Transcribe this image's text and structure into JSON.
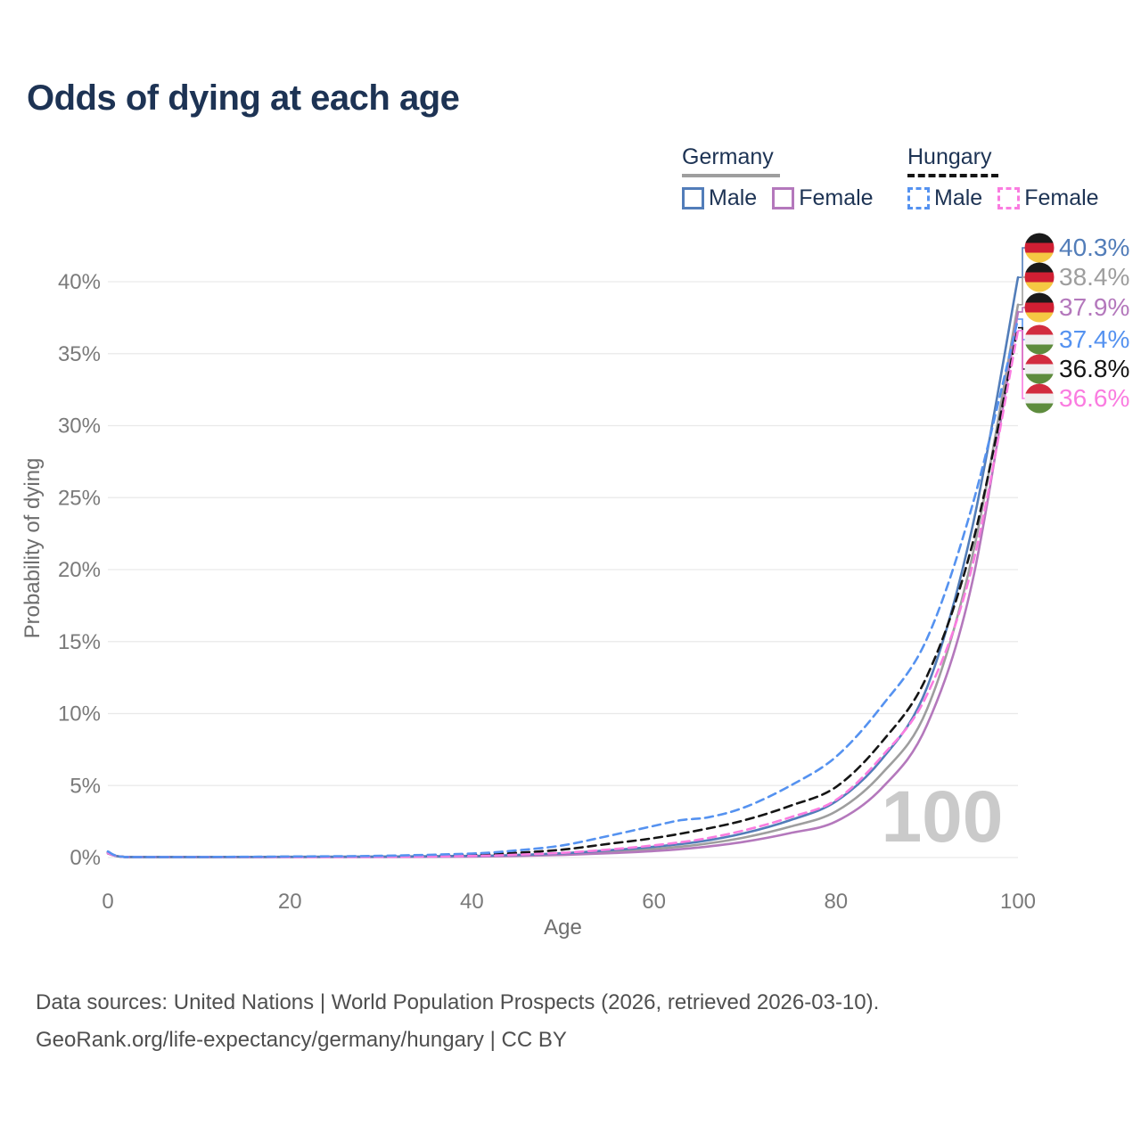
{
  "title": "Odds of dying at each age",
  "legend": {
    "groups": [
      {
        "label": "Germany",
        "line_style": "solid",
        "line_color": "#9e9e9e",
        "items": [
          {
            "label": "Male",
            "color": "#527db9",
            "style": "solid"
          },
          {
            "label": "Female",
            "color": "#b478bc",
            "style": "solid"
          }
        ]
      },
      {
        "label": "Hungary",
        "line_style": "dashed",
        "line_color": "#151515",
        "items": [
          {
            "label": "Male",
            "color": "#5592f0",
            "style": "dashed"
          },
          {
            "label": "Female",
            "color": "#fa7ce0",
            "style": "dashed"
          }
        ]
      }
    ]
  },
  "colors": {
    "navy": "#1d3354",
    "germany_male": "#527db9",
    "germany_female": "#b478bc",
    "germany_both": "#9e9e9e",
    "hungary_male": "#5592f0",
    "hungary_female": "#fa7ce0",
    "hungary_both": "#151515",
    "grid": "#e9e9e9",
    "tick_text": "#7a7a7a",
    "axis_title_text": "#6e6e6e",
    "watermark": "#cacaca",
    "footer_text": "#4f4f4f",
    "flag_germany": [
      "#1a1a1a",
      "#d01f33",
      "#f5c843"
    ],
    "flag_hungary": [
      "#d22d3f",
      "#f0f0f0",
      "#5e8c3e"
    ]
  },
  "chart_data": {
    "type": "line",
    "title": "Odds of dying at each age",
    "xlabel": "Age",
    "ylabel": "Probability of dying",
    "xlim": [
      0,
      100
    ],
    "ylim": [
      0,
      43
    ],
    "grid": "horizontal",
    "watermark": "100",
    "x_ticks": [
      {
        "value": 0,
        "label": "0"
      },
      {
        "value": 20,
        "label": "20"
      },
      {
        "value": 40,
        "label": "40"
      },
      {
        "value": 60,
        "label": "60"
      },
      {
        "value": 80,
        "label": "80"
      },
      {
        "value": 100,
        "label": "100"
      }
    ],
    "y_ticks": [
      {
        "value": 0,
        "label": "0%"
      },
      {
        "value": 5,
        "label": "5%"
      },
      {
        "value": 10,
        "label": "10%"
      },
      {
        "value": 15,
        "label": "15%"
      },
      {
        "value": 20,
        "label": "20%"
      },
      {
        "value": 25,
        "label": "25%"
      },
      {
        "value": 30,
        "label": "30%"
      },
      {
        "value": 35,
        "label": "35%"
      },
      {
        "value": 40,
        "label": "40%"
      }
    ],
    "series": [
      {
        "name": "Germany Both sexes",
        "country": "Germany",
        "sex": "Both",
        "color": "#9e9e9e",
        "dash": null,
        "end_label": "38.4%",
        "points": [
          [
            0,
            0.32
          ],
          [
            2,
            0.03
          ],
          [
            10,
            0.01
          ],
          [
            20,
            0.04
          ],
          [
            30,
            0.05
          ],
          [
            40,
            0.09
          ],
          [
            45,
            0.15
          ],
          [
            50,
            0.24
          ],
          [
            55,
            0.4
          ],
          [
            60,
            0.6
          ],
          [
            65,
            0.9
          ],
          [
            70,
            1.4
          ],
          [
            75,
            2.15
          ],
          [
            80,
            3.2
          ],
          [
            85,
            5.8
          ],
          [
            90,
            10.3
          ],
          [
            95,
            21.0
          ],
          [
            100,
            38.4
          ]
        ]
      },
      {
        "name": "Germany Female",
        "country": "Germany",
        "sex": "Female",
        "color": "#b478bc",
        "dash": null,
        "end_label": "37.9%",
        "points": [
          [
            0,
            0.28
          ],
          [
            2,
            0.025
          ],
          [
            10,
            0.008
          ],
          [
            20,
            0.02
          ],
          [
            30,
            0.03
          ],
          [
            40,
            0.07
          ],
          [
            45,
            0.11
          ],
          [
            50,
            0.18
          ],
          [
            55,
            0.3
          ],
          [
            60,
            0.45
          ],
          [
            65,
            0.7
          ],
          [
            70,
            1.1
          ],
          [
            75,
            1.7
          ],
          [
            80,
            2.5
          ],
          [
            85,
            4.8
          ],
          [
            90,
            9.2
          ],
          [
            95,
            19.2
          ],
          [
            100,
            37.9
          ]
        ]
      },
      {
        "name": "Germany Male",
        "country": "Germany",
        "sex": "Male",
        "color": "#527db9",
        "dash": null,
        "end_label": "40.3%",
        "points": [
          [
            0,
            0.35
          ],
          [
            2,
            0.03
          ],
          [
            10,
            0.01
          ],
          [
            20,
            0.05
          ],
          [
            30,
            0.07
          ],
          [
            40,
            0.11
          ],
          [
            45,
            0.18
          ],
          [
            50,
            0.3
          ],
          [
            55,
            0.5
          ],
          [
            60,
            0.75
          ],
          [
            65,
            1.1
          ],
          [
            70,
            1.7
          ],
          [
            75,
            2.6
          ],
          [
            80,
            3.9
          ],
          [
            85,
            6.8
          ],
          [
            90,
            11.8
          ],
          [
            95,
            23.0
          ],
          [
            100,
            40.3
          ]
        ]
      },
      {
        "name": "Hungary Both sexes",
        "country": "Hungary",
        "sex": "Both",
        "color": "#151515",
        "dash": "9 6",
        "end_label": "36.8%",
        "points": [
          [
            0,
            0.38
          ],
          [
            2,
            0.03
          ],
          [
            10,
            0.012
          ],
          [
            20,
            0.05
          ],
          [
            30,
            0.08
          ],
          [
            40,
            0.18
          ],
          [
            45,
            0.33
          ],
          [
            50,
            0.55
          ],
          [
            55,
            0.95
          ],
          [
            60,
            1.35
          ],
          [
            65,
            1.9
          ],
          [
            70,
            2.6
          ],
          [
            75,
            3.6
          ],
          [
            80,
            4.9
          ],
          [
            85,
            8.0
          ],
          [
            90,
            12.6
          ],
          [
            95,
            21.8
          ],
          [
            100,
            36.8
          ]
        ]
      },
      {
        "name": "Hungary Female",
        "country": "Hungary",
        "sex": "Female",
        "color": "#fa7ce0",
        "dash": "9 6",
        "end_label": "36.6%",
        "points": [
          [
            0,
            0.33
          ],
          [
            2,
            0.028
          ],
          [
            10,
            0.01
          ],
          [
            20,
            0.03
          ],
          [
            30,
            0.05
          ],
          [
            40,
            0.11
          ],
          [
            45,
            0.2
          ],
          [
            50,
            0.33
          ],
          [
            55,
            0.55
          ],
          [
            60,
            0.85
          ],
          [
            65,
            1.25
          ],
          [
            70,
            1.9
          ],
          [
            75,
            2.8
          ],
          [
            80,
            4.0
          ],
          [
            85,
            7.0
          ],
          [
            90,
            11.3
          ],
          [
            95,
            20.3
          ],
          [
            100,
            36.6
          ]
        ]
      },
      {
        "name": "Hungary Male",
        "country": "Hungary",
        "sex": "Male",
        "color": "#5592f0",
        "dash": "9 6",
        "end_label": "37.4%",
        "points": [
          [
            0,
            0.42
          ],
          [
            2,
            0.035
          ],
          [
            10,
            0.015
          ],
          [
            20,
            0.07
          ],
          [
            30,
            0.12
          ],
          [
            40,
            0.28
          ],
          [
            45,
            0.5
          ],
          [
            50,
            0.85
          ],
          [
            55,
            1.5
          ],
          [
            60,
            2.2
          ],
          [
            63,
            2.6
          ],
          [
            66,
            2.8
          ],
          [
            70,
            3.5
          ],
          [
            75,
            5.0
          ],
          [
            80,
            7.0
          ],
          [
            85,
            10.5
          ],
          [
            90,
            15.2
          ],
          [
            95,
            24.5
          ],
          [
            100,
            37.4
          ]
        ]
      }
    ],
    "end_labels": [
      {
        "flag": "germany",
        "value": "40.3%",
        "color": "#527db9",
        "series": "Germany Male"
      },
      {
        "flag": "germany",
        "value": "38.4%",
        "color": "#9e9e9e",
        "series": "Germany Both sexes"
      },
      {
        "flag": "germany",
        "value": "37.9%",
        "color": "#b478bc",
        "series": "Germany Female"
      },
      {
        "flag": "hungary",
        "value": "37.4%",
        "color": "#5592f0",
        "series": "Hungary Male"
      },
      {
        "flag": "hungary",
        "value": "36.8%",
        "color": "#151515",
        "series": "Hungary Both sexes"
      },
      {
        "flag": "hungary",
        "value": "36.6%",
        "color": "#fa7ce0",
        "series": "Hungary Female"
      }
    ]
  },
  "footer": {
    "line1": "Data sources: United Nations | World Population Prospects (2026, retrieved 2026-03-10).",
    "line2": "GeoRank.org/life-expectancy/germany/hungary | CC BY"
  }
}
